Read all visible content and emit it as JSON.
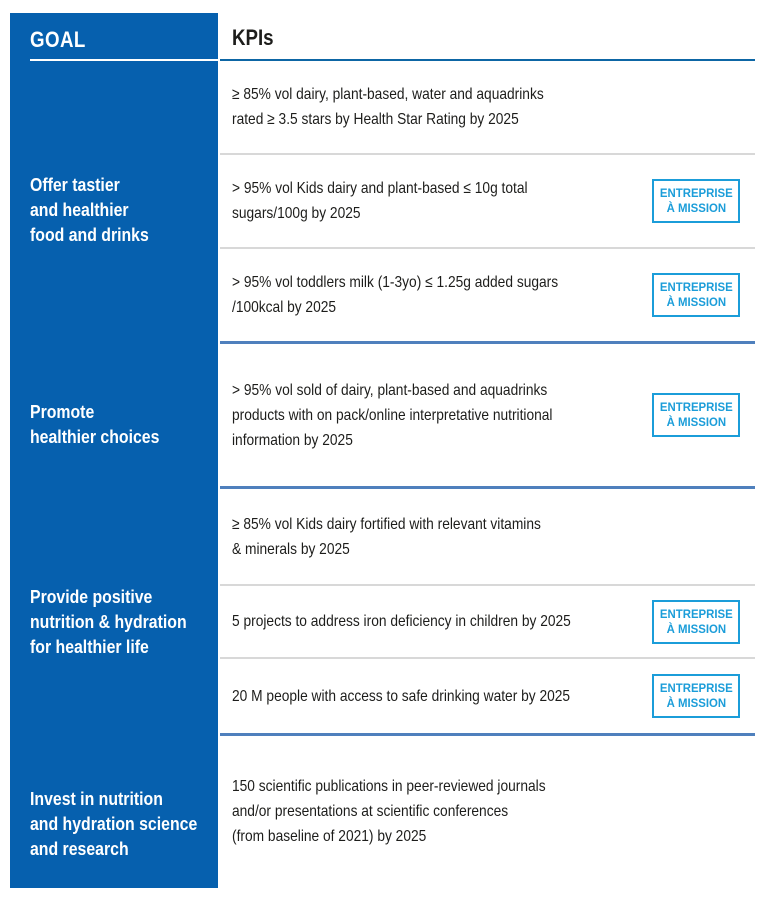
{
  "table": {
    "goal_header": "GOAL",
    "kpi_header": "KPIs",
    "badge": {
      "line1": "ENTREPRISE",
      "line2": "À MISSION"
    },
    "sections": [
      {
        "goal": "Offer tastier\nand healthier\nfood and drinks",
        "kpis": [
          {
            "text": "≥ 85% vol dairy, plant-based, water and aquadrinks\nrated ≥ 3.5 stars by Health Star Rating by 2025",
            "entreprise_a_mission_badge": false
          },
          {
            "text": "> 95% vol Kids dairy and plant-based ≤ 10g total\nsugars/100g by 2025",
            "entreprise_a_mission_badge": true
          },
          {
            "text": "> 95% vol toddlers milk (1-3yo) ≤ 1.25g added sugars\n/100kcal by 2025",
            "entreprise_a_mission_badge": true
          }
        ]
      },
      {
        "goal": "Promote\nhealthier choices",
        "kpis": [
          {
            "text": "> 95% vol sold of dairy, plant-based and aquadrinks\nproducts with on pack/online interpretative nutritional\ninformation by 2025",
            "entreprise_a_mission_badge": true
          }
        ]
      },
      {
        "goal": "Provide positive\nnutrition & hydration\nfor healthier life",
        "kpis": [
          {
            "text": "≥ 85% vol Kids dairy fortified with relevant vitamins\n& minerals by 2025",
            "entreprise_a_mission_badge": false
          },
          {
            "text": "5 projects to address iron deficiency in children by 2025",
            "entreprise_a_mission_badge": true
          },
          {
            "text": "20 M people with access to safe drinking water by 2025",
            "entreprise_a_mission_badge": true
          }
        ]
      },
      {
        "goal": "Invest in nutrition\nand hydration science\nand research",
        "kpis": [
          {
            "text": "150 scientific publications in peer-reviewed journals\nand/or presentations at scientific conferences\n(from baseline of 2021) by 2025",
            "entreprise_a_mission_badge": false
          }
        ]
      }
    ],
    "colors": {
      "sidebar_blue": "#0660ae",
      "header_rule_blue": "#0d66a5",
      "section_rule_blue": "#4f80bd",
      "row_rule_gray": "#d8d8d8",
      "badge_blue": "#1b9dd9",
      "text_dark": "#1d1d1b",
      "goal_text_white": "#ffffff"
    }
  }
}
